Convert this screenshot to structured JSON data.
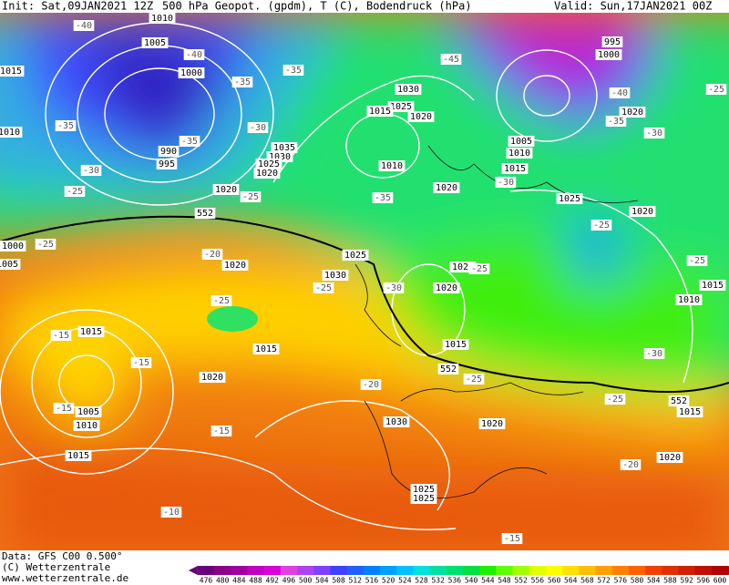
{
  "header": {
    "init": "Init: Sat,09JAN2021 12Z",
    "title": "500 hPa Geopot. (gpdm), T (C), Bodendruck (hPa)",
    "valid": "Valid: Sun,17JAN2021 00Z"
  },
  "footer": {
    "data": "Data: GFS C00 0.500°",
    "copyright": "(C) Wetterzentrale",
    "url": "www.wetterzentrale.de"
  },
  "map": {
    "pressure_labels": [
      "1010",
      "1005",
      "1000",
      "1015",
      "1010",
      "990",
      "995",
      "1035",
      "1030",
      "1025",
      "1020",
      "1020",
      "1030",
      "1025",
      "1015",
      "1020",
      "1010",
      "995",
      "1000",
      "1020",
      "1005",
      "1010",
      "1015",
      "1020",
      "1025",
      "1020",
      "1000",
      "1005",
      "1020",
      "1030",
      "1025",
      "1025",
      "1020",
      "1015",
      "1015",
      "1015",
      "1020",
      "1005",
      "1010",
      "1015",
      "1030",
      "1020",
      "1015",
      "1010",
      "1015",
      "1020",
      "1025",
      "1025"
    ],
    "temperature_labels": [
      "-40",
      "-45",
      "-40",
      "-35",
      "-35",
      "-35",
      "-35",
      "-30",
      "-40",
      "-35",
      "-30",
      "-30",
      "-25",
      "-25",
      "-35",
      "-30",
      "-25",
      "-25",
      "-25",
      "-20",
      "-25",
      "-25",
      "-30",
      "-25",
      "-25",
      "-30",
      "-15",
      "-15",
      "-15",
      "-20",
      "-25",
      "-25",
      "-15",
      "-20",
      "-10",
      "-15"
    ],
    "geopotential_labels": [
      "552",
      "552",
      "552"
    ]
  },
  "colorbar": {
    "levels": [
      476,
      480,
      484,
      488,
      492,
      496,
      500,
      504,
      508,
      512,
      516,
      520,
      524,
      528,
      532,
      536,
      540,
      544,
      548,
      552,
      556,
      560,
      564,
      568,
      572,
      576,
      580,
      584,
      588,
      592,
      596,
      600
    ],
    "colors": [
      "#6a0080",
      "#8a008a",
      "#a000a0",
      "#c000c0",
      "#d800d8",
      "#e040e0",
      "#b040f0",
      "#8040ff",
      "#4040ff",
      "#2060ff",
      "#0080ff",
      "#00a0ff",
      "#00c0ff",
      "#00e0e0",
      "#00e0a0",
      "#00e070",
      "#00e040",
      "#20f000",
      "#60ff00",
      "#a0ff00",
      "#e0ff00",
      "#ffff00",
      "#ffe000",
      "#ffc000",
      "#ffa000",
      "#ff8000",
      "#ff6000",
      "#f04000",
      "#e03000",
      "#d02000",
      "#c01000",
      "#b00000"
    ]
  }
}
